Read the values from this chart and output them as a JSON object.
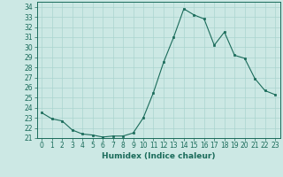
{
  "x": [
    0,
    1,
    2,
    3,
    4,
    5,
    6,
    7,
    8,
    9,
    10,
    11,
    12,
    13,
    14,
    15,
    16,
    17,
    18,
    19,
    20,
    21,
    22,
    23
  ],
  "y": [
    23.5,
    22.9,
    22.7,
    21.8,
    21.4,
    21.3,
    21.1,
    21.2,
    21.2,
    21.5,
    23.0,
    25.5,
    28.5,
    31.0,
    33.8,
    33.2,
    32.8,
    30.2,
    31.5,
    29.2,
    28.9,
    26.9,
    25.7,
    25.3
  ],
  "xlabel": "Humidex (Indice chaleur)",
  "xlim": [
    -0.5,
    23.5
  ],
  "ylim": [
    21,
    34.5
  ],
  "yticks": [
    21,
    22,
    23,
    24,
    25,
    26,
    27,
    28,
    29,
    30,
    31,
    32,
    33,
    34
  ],
  "xticks": [
    0,
    1,
    2,
    3,
    4,
    5,
    6,
    7,
    8,
    9,
    10,
    11,
    12,
    13,
    14,
    15,
    16,
    17,
    18,
    19,
    20,
    21,
    22,
    23
  ],
  "line_color": "#1a6b5a",
  "marker_color": "#1a6b5a",
  "bg_color": "#cce8e4",
  "grid_color": "#aad4cf",
  "label_fontsize": 6.5,
  "tick_fontsize": 5.5
}
